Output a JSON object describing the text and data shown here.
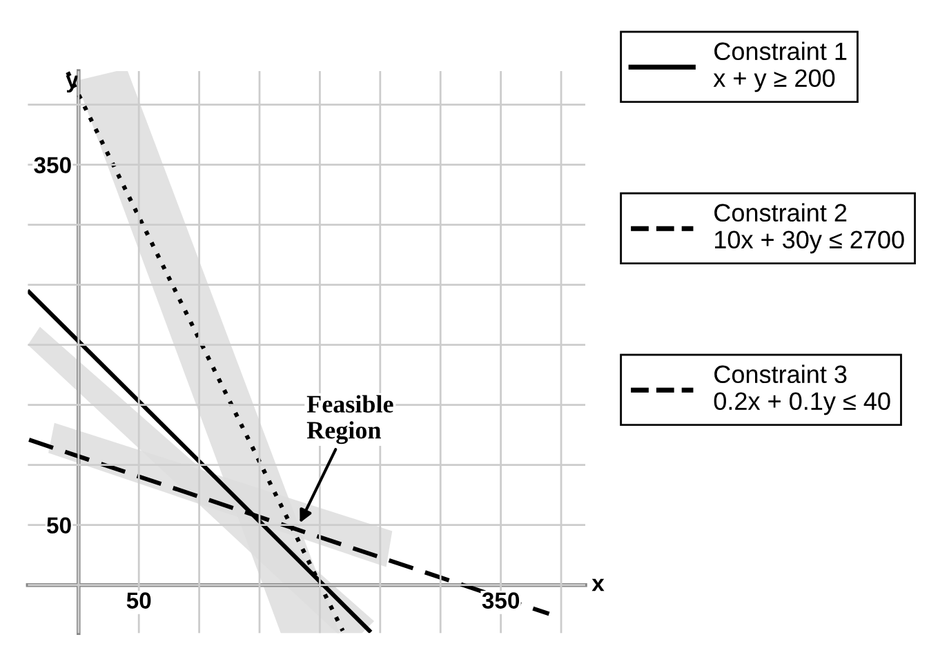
{
  "chart_data": {
    "type": "line",
    "xlabel": "x",
    "ylabel": "y",
    "xlim": [
      -42,
      420
    ],
    "ylim": [
      -40,
      428
    ],
    "xticks": [
      {
        "value": 0,
        "label": null
      },
      50,
      {
        "value": 100,
        "label": null
      },
      {
        "value": 150,
        "label": null
      },
      {
        "value": 200,
        "label": null
      },
      {
        "value": 250,
        "label": null
      },
      {
        "value": 300,
        "label": null
      },
      350,
      {
        "value": 400,
        "label": null
      }
    ],
    "yticks": [
      {
        "value": 0,
        "label": null
      },
      50,
      {
        "value": 100,
        "label": null
      },
      {
        "value": 150,
        "label": null
      },
      {
        "value": 200,
        "label": null
      },
      {
        "value": 250,
        "label": null
      },
      {
        "value": 300,
        "label": null
      },
      350,
      {
        "value": 400,
        "label": null
      }
    ],
    "grid": true,
    "legend": "right",
    "marker": "none",
    "series": [
      {
        "name": "Constraint 1\nx + y ≥ 200",
        "color": "#000000",
        "line_style": "solid",
        "x": [
          -41,
          241
        ],
        "values": [
          244,
          -38
        ]
      },
      {
        "name": "Constraint 2\n10x + 30y ≤ 2700",
        "color": "#000000",
        "line_style": "dashed",
        "x": [
          -41,
          390
        ],
        "values": [
          121,
          -24
        ]
      },
      {
        "name": "Constraint 3\n0.2x + 0.1y ≤ 40",
        "color": "#000000",
        "line_style": "dotted",
        "x": [
          -9,
          219
        ],
        "values": [
          427,
          -38
        ]
      }
    ],
    "annotations": [
      "Feasible\nRegion"
    ]
  }
}
